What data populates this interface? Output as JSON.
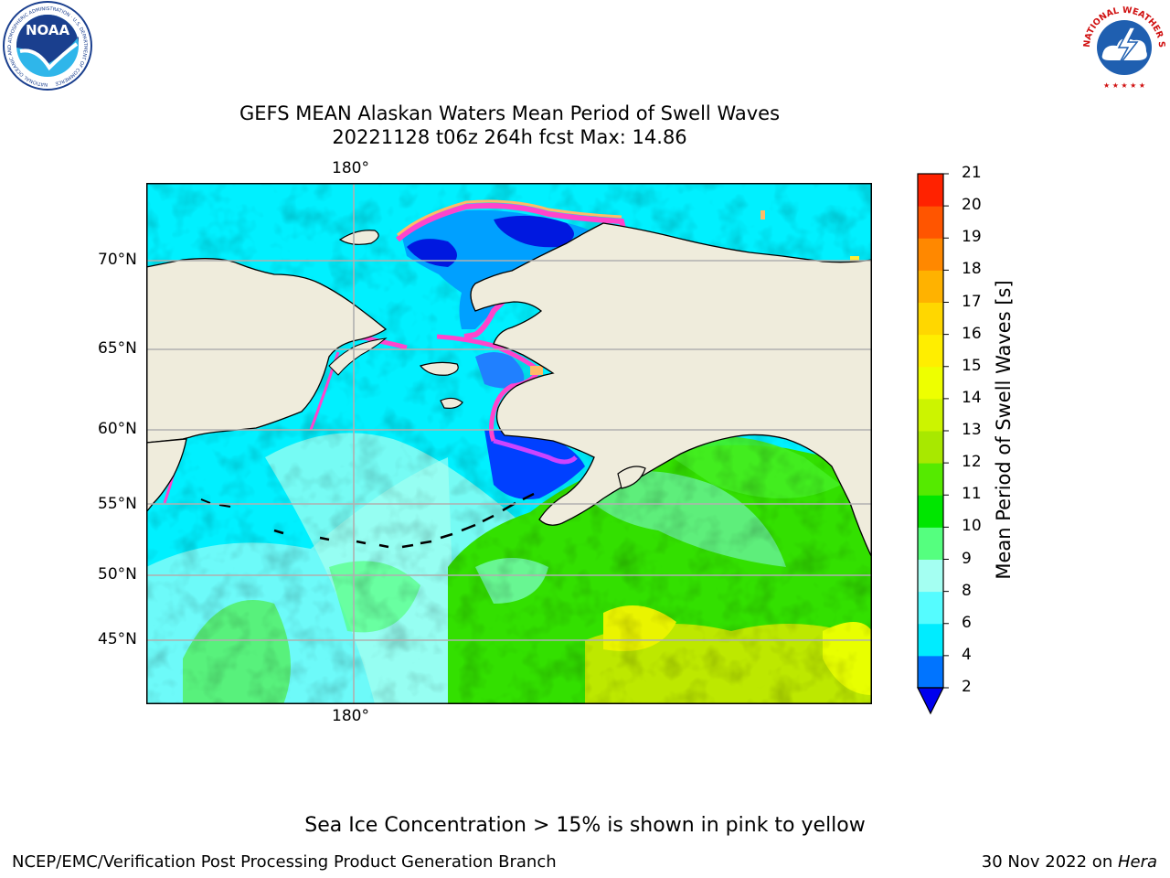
{
  "header": {
    "title_line1": "GEFS MEAN Alaskan Waters Mean Period of Swell Waves",
    "title_line2": "20221128 t06z 264h fcst   Max: 14.86"
  },
  "logos": {
    "noaa_text": "NOAA",
    "noaa_ring_text": "NATIONAL OCEANIC AND ATMOSPHERIC ADMINISTRATION · U.S. DEPARTMENT OF COMMERCE",
    "nws_ring_text": "NATIONAL WEATHER SERVICE"
  },
  "map": {
    "lon_label_top": "180°",
    "lon_label_bottom": "180°",
    "lat_labels": [
      "70°N",
      "65°N",
      "60°N",
      "55°N",
      "50°N",
      "45°N"
    ],
    "colors": {
      "land": "#efecdc",
      "grid": "#b0b0b0",
      "ice_pink": "#ff44cc",
      "ice_orange": "#ffbb66",
      "ice_yellow": "#ffee33"
    }
  },
  "colorbar": {
    "label": "Mean Period of Swell Waves [s]",
    "ticks": [
      "2",
      "4",
      "6",
      "8",
      "9",
      "10",
      "11",
      "12",
      "13",
      "14",
      "15",
      "16",
      "17",
      "18",
      "19",
      "20",
      "21"
    ],
    "colors": [
      "#0074ff",
      "#00ecff",
      "#55fcff",
      "#a4fff2",
      "#55ff7f",
      "#00e600",
      "#55ea00",
      "#a8e800",
      "#ccf400",
      "#eeff00",
      "#ffee00",
      "#ffd700",
      "#ffb200",
      "#ff8800",
      "#ff5500",
      "#ff2200"
    ],
    "under_color": "#0000ee"
  },
  "footer": {
    "note": "Sea Ice Concentration > 15% is shown in pink to yellow",
    "credit": "NCEP/EMC/Verification Post Processing Product Generation Branch",
    "date_text": "30 Nov 2022 on ",
    "date_host": "Hera"
  }
}
